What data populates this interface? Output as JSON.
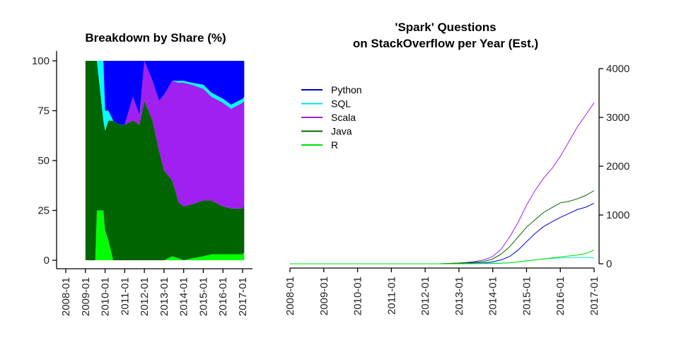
{
  "chart_data": [
    {
      "type": "area",
      "stacked": true,
      "title": "Breakdown by Share (%)",
      "xlabel": "",
      "ylabel": "",
      "ylim": [
        0,
        100
      ],
      "yticks": [
        0,
        25,
        50,
        75,
        100
      ],
      "xticks": [
        "2008-01",
        "2009-01",
        "2010-01",
        "2011-01",
        "2012-01",
        "2013-01",
        "2014-01",
        "2015-01",
        "2016-01",
        "2017-01"
      ],
      "xlim": [
        "2007-10",
        "2017-03"
      ],
      "x": [
        "2009-01",
        "2009-07",
        "2009-08",
        "2009-12",
        "2010-01",
        "2010-03",
        "2010-06",
        "2010-10",
        "2011-01",
        "2011-06",
        "2011-10",
        "2012-01",
        "2012-06",
        "2012-10",
        "2013-01",
        "2013-06",
        "2013-10",
        "2014-01",
        "2014-06",
        "2015-01",
        "2015-06",
        "2016-01",
        "2016-06",
        "2017-01",
        "2017-02"
      ],
      "series": [
        {
          "name": "R",
          "color": "#00ff00",
          "values": [
            0,
            0,
            25,
            25,
            15,
            10,
            0,
            0,
            0,
            0,
            0,
            0,
            0,
            0,
            0,
            2,
            1,
            0,
            1,
            2,
            3,
            3,
            3,
            3,
            4
          ]
        },
        {
          "name": "Java",
          "color": "#006400",
          "values": [
            100,
            100,
            75,
            45,
            50,
            60,
            70,
            68,
            68,
            70,
            68,
            80,
            70,
            55,
            45,
            38,
            28,
            27,
            27,
            28,
            27,
            24,
            23,
            23,
            24
          ]
        },
        {
          "name": "Scala",
          "color": "#a020f0",
          "values": [
            0,
            0,
            0,
            0,
            0,
            0,
            0,
            0,
            0,
            12,
            5,
            20,
            20,
            25,
            38,
            50,
            60,
            62,
            60,
            56,
            52,
            52,
            50,
            53,
            52
          ]
        },
        {
          "name": "SQL",
          "color": "#00ffff",
          "values": [
            0,
            0,
            0,
            30,
            10,
            5,
            0,
            0,
            0,
            0,
            0,
            0,
            0,
            0,
            0,
            0,
            1,
            1,
            1,
            2,
            2,
            2,
            2,
            2,
            2
          ]
        },
        {
          "name": "Python",
          "color": "#0000ff",
          "values": [
            0,
            0,
            0,
            0,
            25,
            25,
            30,
            32,
            32,
            18,
            27,
            0,
            10,
            20,
            17,
            10,
            10,
            10,
            11,
            12,
            16,
            19,
            22,
            19,
            18
          ]
        }
      ]
    },
    {
      "type": "line",
      "title": "'Spark' Questions\non StackOverflow per Year (Est.)",
      "title_lines": [
        "'Spark' Questions",
        "on StackOverflow per Year (Est.)"
      ],
      "xlabel": "",
      "ylabel": "",
      "ylim": [
        0,
        4000
      ],
      "yticks": [
        0,
        1000,
        2000,
        3000,
        4000
      ],
      "y_axis_position": "right",
      "xticks": [
        "2008-01",
        "2009-01",
        "2010-01",
        "2011-01",
        "2012-01",
        "2013-01",
        "2014-01",
        "2015-01",
        "2016-01",
        "2017-01"
      ],
      "xlim": [
        "2008-01",
        "2017-01"
      ],
      "legend": "top-left",
      "x": [
        "2008-01",
        "2012-06",
        "2013-01",
        "2013-06",
        "2013-10",
        "2014-01",
        "2014-04",
        "2014-07",
        "2014-10",
        "2015-01",
        "2015-04",
        "2015-07",
        "2015-10",
        "2016-01",
        "2016-04",
        "2016-07",
        "2016-10",
        "2017-01"
      ],
      "series": [
        {
          "name": "Python",
          "color": "#0000cc",
          "values": [
            0,
            0,
            10,
            15,
            20,
            40,
            80,
            150,
            280,
            450,
            620,
            760,
            860,
            950,
            1030,
            1110,
            1160,
            1240
          ]
        },
        {
          "name": "SQL",
          "color": "#00e5e5",
          "values": [
            0,
            0,
            5,
            5,
            8,
            10,
            15,
            20,
            40,
            60,
            80,
            100,
            110,
            120,
            125,
            130,
            130,
            120
          ]
        },
        {
          "name": "Scala",
          "color": "#a020f0",
          "values": [
            0,
            0,
            15,
            40,
            80,
            150,
            300,
            550,
            850,
            1200,
            1500,
            1750,
            1950,
            2200,
            2500,
            2800,
            3050,
            3300
          ]
        },
        {
          "name": "Java",
          "color": "#006400",
          "values": [
            0,
            0,
            15,
            30,
            50,
            100,
            200,
            350,
            550,
            750,
            900,
            1050,
            1150,
            1250,
            1280,
            1330,
            1400,
            1500
          ]
        },
        {
          "name": "R",
          "color": "#00e000",
          "values": [
            0,
            0,
            0,
            2,
            3,
            5,
            10,
            20,
            40,
            60,
            80,
            100,
            120,
            140,
            160,
            180,
            210,
            280
          ]
        }
      ]
    }
  ]
}
